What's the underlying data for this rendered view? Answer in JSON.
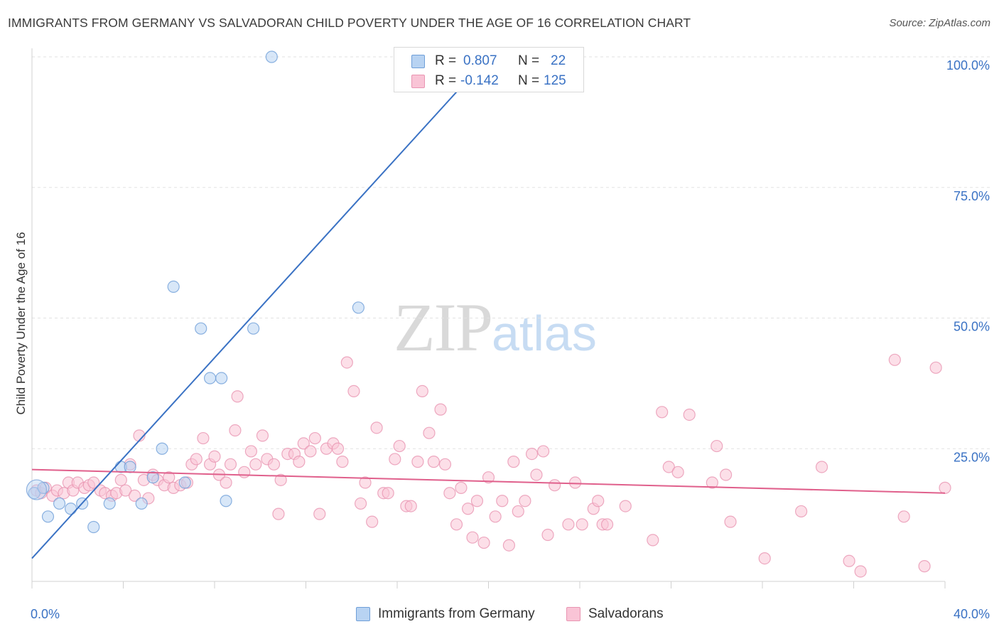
{
  "title": "IMMIGRANTS FROM GERMANY VS SALVADORAN CHILD POVERTY UNDER THE AGE OF 16 CORRELATION CHART",
  "source": "Source: ZipAtlas.com",
  "watermark": {
    "zip": "ZIP",
    "atlas": "atlas"
  },
  "stats": {
    "blue": {
      "r_label": "R =",
      "r_value": "0.807",
      "n_label": "N =",
      "n_value": "22"
    },
    "pink": {
      "r_label": "R =",
      "r_value": "-0.142",
      "n_label": "N =",
      "n_value": "125"
    }
  },
  "legend": {
    "blue": "Immigrants from Germany",
    "pink": "Salvadorans"
  },
  "colors": {
    "blue": "#3a72c4",
    "blue_fill": "#b8d3f2",
    "pink": "#e0608c",
    "pink_fill": "#f9c4d6",
    "tick_label": "#3a72c4"
  },
  "chart_data": {
    "type": "scatter",
    "title": "IMMIGRANTS FROM GERMANY VS SALVADORAN CHILD POVERTY UNDER THE AGE OF 16 CORRELATION CHART",
    "xlabel": "",
    "ylabel": "Child Poverty Under the Age of 16",
    "xlim": [
      0,
      40
    ],
    "ylim": [
      0,
      100
    ],
    "x_tick_labels": [
      "0.0%",
      "40.0%"
    ],
    "y_tick_labels": [
      "25.0%",
      "50.0%",
      "75.0%",
      "100.0%"
    ],
    "y_ticks": [
      25,
      50,
      75,
      100
    ],
    "series": [
      {
        "name": "Immigrants from Germany",
        "R": 0.807,
        "N": 22,
        "trend": {
          "x": [
            0,
            20
          ],
          "y": [
            4,
            100
          ]
        },
        "points": [
          [
            0.1,
            16.5
          ],
          [
            0.5,
            17.5
          ],
          [
            0.7,
            12
          ],
          [
            1.2,
            14.5
          ],
          [
            1.7,
            13.5
          ],
          [
            2.2,
            14.5
          ],
          [
            2.7,
            10
          ],
          [
            3.4,
            14.5
          ],
          [
            3.9,
            21.5
          ],
          [
            4.3,
            21.5
          ],
          [
            4.8,
            14.5
          ],
          [
            5.3,
            19.5
          ],
          [
            5.7,
            25
          ],
          [
            6.2,
            56
          ],
          [
            6.7,
            18.5
          ],
          [
            7.4,
            48
          ],
          [
            7.8,
            38.5
          ],
          [
            8.3,
            38.5
          ],
          [
            8.5,
            15
          ],
          [
            9.7,
            48
          ],
          [
            10.5,
            100
          ],
          [
            14.3,
            52
          ]
        ]
      },
      {
        "name": "Salvadorans",
        "R": -0.142,
        "N": 125,
        "trend": {
          "x": [
            0,
            40
          ],
          "y": [
            21,
            16.5
          ]
        },
        "points": [
          [
            0.2,
            17
          ],
          [
            0.4,
            16.5
          ],
          [
            0.6,
            17.5
          ],
          [
            0.9,
            16
          ],
          [
            1.1,
            17
          ],
          [
            1.4,
            16.5
          ],
          [
            1.6,
            18.5
          ],
          [
            1.8,
            17
          ],
          [
            2.0,
            18.5
          ],
          [
            2.3,
            17.5
          ],
          [
            2.5,
            18
          ],
          [
            2.7,
            18.5
          ],
          [
            3.0,
            17
          ],
          [
            3.2,
            16.5
          ],
          [
            3.5,
            16
          ],
          [
            3.7,
            16.5
          ],
          [
            3.9,
            19
          ],
          [
            4.1,
            17
          ],
          [
            4.3,
            22
          ],
          [
            4.5,
            16
          ],
          [
            4.7,
            27.5
          ],
          [
            4.9,
            19
          ],
          [
            5.1,
            15.5
          ],
          [
            5.3,
            20
          ],
          [
            5.5,
            19
          ],
          [
            5.8,
            18
          ],
          [
            6.0,
            19.5
          ],
          [
            6.2,
            17.5
          ],
          [
            6.5,
            18
          ],
          [
            6.8,
            18.5
          ],
          [
            7.0,
            22
          ],
          [
            7.2,
            23
          ],
          [
            7.5,
            27
          ],
          [
            7.8,
            22
          ],
          [
            8.0,
            23.5
          ],
          [
            8.2,
            20
          ],
          [
            8.5,
            18.5
          ],
          [
            8.7,
            22
          ],
          [
            8.9,
            28.5
          ],
          [
            9.0,
            35
          ],
          [
            9.3,
            20.5
          ],
          [
            9.6,
            24.5
          ],
          [
            9.8,
            22
          ],
          [
            10.1,
            27.5
          ],
          [
            10.3,
            23
          ],
          [
            10.6,
            22
          ],
          [
            10.8,
            12.5
          ],
          [
            10.9,
            19
          ],
          [
            11.2,
            24
          ],
          [
            11.5,
            24
          ],
          [
            11.7,
            22.5
          ],
          [
            11.9,
            26
          ],
          [
            12.2,
            24.5
          ],
          [
            12.4,
            27
          ],
          [
            12.6,
            12.5
          ],
          [
            12.9,
            25
          ],
          [
            13.2,
            26
          ],
          [
            13.4,
            25
          ],
          [
            13.6,
            22.5
          ],
          [
            13.8,
            41.5
          ],
          [
            14.1,
            36
          ],
          [
            14.4,
            14.5
          ],
          [
            14.6,
            18.5
          ],
          [
            14.9,
            11
          ],
          [
            15.1,
            29
          ],
          [
            15.4,
            16.5
          ],
          [
            15.6,
            16.5
          ],
          [
            15.9,
            23
          ],
          [
            16.1,
            25.5
          ],
          [
            16.4,
            14
          ],
          [
            16.6,
            14
          ],
          [
            16.9,
            22.5
          ],
          [
            17.1,
            36
          ],
          [
            17.4,
            28
          ],
          [
            17.6,
            22.5
          ],
          [
            17.9,
            32.5
          ],
          [
            18.1,
            22
          ],
          [
            18.3,
            16.5
          ],
          [
            18.6,
            10.5
          ],
          [
            18.8,
            17.5
          ],
          [
            19.1,
            13.5
          ],
          [
            19.3,
            8
          ],
          [
            19.5,
            15
          ],
          [
            19.8,
            7
          ],
          [
            20.0,
            19.5
          ],
          [
            20.3,
            12
          ],
          [
            20.6,
            15
          ],
          [
            20.9,
            6.5
          ],
          [
            21.1,
            22.5
          ],
          [
            21.3,
            13
          ],
          [
            21.6,
            15
          ],
          [
            21.9,
            24
          ],
          [
            22.1,
            20
          ],
          [
            22.4,
            24.5
          ],
          [
            22.6,
            8.5
          ],
          [
            22.9,
            18
          ],
          [
            23.5,
            10.5
          ],
          [
            23.8,
            18.5
          ],
          [
            24.1,
            10.5
          ],
          [
            24.6,
            13.5
          ],
          [
            24.8,
            15
          ],
          [
            25.0,
            10.5
          ],
          [
            25.2,
            10.5
          ],
          [
            26.0,
            14
          ],
          [
            27.2,
            7.5
          ],
          [
            27.6,
            32
          ],
          [
            27.9,
            21.5
          ],
          [
            28.3,
            20.5
          ],
          [
            28.8,
            31.5
          ],
          [
            29.8,
            18.5
          ],
          [
            30.0,
            25.5
          ],
          [
            30.4,
            20
          ],
          [
            30.6,
            11
          ],
          [
            32.1,
            4
          ],
          [
            33.7,
            13
          ],
          [
            34.6,
            21.5
          ],
          [
            35.8,
            3.5
          ],
          [
            36.3,
            1.5
          ],
          [
            37.8,
            42
          ],
          [
            38.2,
            12
          ],
          [
            39.1,
            2.5
          ],
          [
            39.6,
            40.5
          ],
          [
            40.0,
            17.5
          ]
        ]
      }
    ]
  }
}
